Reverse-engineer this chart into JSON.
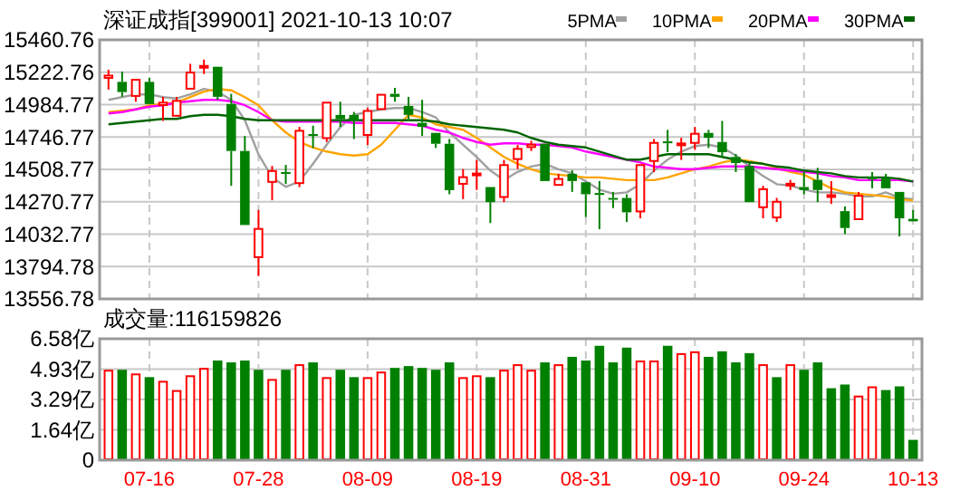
{
  "chart_data": [
    {
      "type": "candlestick",
      "title": "深证成指[399001]  2021-10-13  10:07",
      "categories": [
        null,
        null,
        null,
        null,
        null,
        null,
        null,
        null,
        null,
        null,
        null,
        null,
        null,
        null,
        null,
        null,
        null,
        null,
        null,
        null,
        null,
        null,
        null,
        null,
        null,
        null,
        null,
        null,
        null,
        null,
        null,
        null,
        null,
        null,
        null,
        null,
        null,
        null,
        null,
        null,
        null,
        null,
        null,
        null,
        null,
        null,
        null,
        null,
        null,
        null,
        null,
        null,
        null,
        null,
        null,
        null,
        null,
        null,
        null,
        null
      ],
      "ohlc": [
        [
          15174,
          15241,
          15095,
          15205
        ],
        [
          15152,
          15227,
          15042,
          15077
        ],
        [
          15042,
          15174,
          15006,
          15174
        ],
        [
          15152,
          15183,
          14980,
          14989
        ],
        [
          14975,
          15042,
          14865,
          15006
        ],
        [
          14896,
          15042,
          14887,
          15019
        ],
        [
          15095,
          15285,
          15086,
          15227
        ],
        [
          15263,
          15316,
          15210,
          15276
        ],
        [
          15263,
          15263,
          15020,
          15042
        ],
        [
          14989,
          15064,
          14388,
          14644
        ],
        [
          14644,
          14754,
          14100,
          14100
        ],
        [
          13857,
          14211,
          13725,
          14078
        ],
        [
          14410,
          14534,
          14282,
          14503
        ],
        [
          14489,
          14542,
          14401,
          14476
        ],
        [
          14401,
          14821,
          14379,
          14799
        ],
        [
          14768,
          14830,
          14666,
          14755
        ],
        [
          14732,
          15006,
          14710,
          15006
        ],
        [
          14909,
          15006,
          14821,
          14878
        ],
        [
          14909,
          14931,
          14732,
          14865
        ],
        [
          14755,
          14962,
          14688,
          14945
        ],
        [
          14945,
          15077,
          14931,
          15064
        ],
        [
          15064,
          15108,
          15006,
          15042
        ],
        [
          14975,
          15042,
          14865,
          14909
        ],
        [
          14851,
          15020,
          14754,
          14821
        ],
        [
          14777,
          14777,
          14666,
          14697
        ],
        [
          14697,
          14732,
          14326,
          14356
        ],
        [
          14396,
          14511,
          14290,
          14458
        ],
        [
          14467,
          14578,
          14357,
          14485
        ],
        [
          14379,
          14379,
          14114,
          14268
        ],
        [
          14299,
          14578,
          14268,
          14547
        ],
        [
          14578,
          14688,
          14511,
          14666
        ],
        [
          14666,
          14719,
          14644,
          14697
        ],
        [
          14697,
          14710,
          14414,
          14423
        ],
        [
          14388,
          14476,
          14379,
          14445
        ],
        [
          14476,
          14502,
          14343,
          14423
        ],
        [
          14414,
          14423,
          14158,
          14326
        ],
        [
          14335,
          14423,
          14069,
          14321
        ],
        [
          14299,
          14343,
          14224,
          14286
        ],
        [
          14299,
          14326,
          14122,
          14193
        ],
        [
          14193,
          14556,
          14149,
          14547
        ],
        [
          14564,
          14732,
          14489,
          14710
        ],
        [
          14715,
          14799,
          14635,
          14701
        ],
        [
          14688,
          14741,
          14578,
          14706
        ],
        [
          14697,
          14821,
          14652,
          14777
        ],
        [
          14777,
          14799,
          14666,
          14741
        ],
        [
          14710,
          14865,
          14600,
          14635
        ],
        [
          14600,
          14622,
          14489,
          14555
        ],
        [
          14534,
          14556,
          14268,
          14268
        ],
        [
          14224,
          14388,
          14149,
          14370
        ],
        [
          14149,
          14299,
          14122,
          14277
        ],
        [
          14392,
          14432,
          14357,
          14410
        ],
        [
          14379,
          14489,
          14326,
          14357
        ],
        [
          14432,
          14520,
          14268,
          14357
        ],
        [
          14313,
          14423,
          14255,
          14326
        ],
        [
          14202,
          14237,
          14034,
          14078
        ],
        [
          14136,
          14343,
          14136,
          14321
        ],
        [
          14454,
          14489,
          14370,
          14436
        ],
        [
          14445,
          14476,
          14357,
          14370
        ],
        [
          14343,
          14357,
          14016,
          14149
        ],
        [
          14145,
          14211,
          14122,
          14127
        ]
      ],
      "series": [
        {
          "name": "5PMA",
          "type": "line",
          "color": "#a0a0a0",
          "values": [
            15020,
            15040,
            15060,
            15060,
            15040,
            15030,
            15060,
            15100,
            15080,
            15020,
            14870,
            14620,
            14450,
            14380,
            14420,
            14550,
            14690,
            14820,
            14910,
            14930,
            14950,
            14960,
            14960,
            14930,
            14890,
            14780,
            14690,
            14600,
            14500,
            14430,
            14490,
            14530,
            14550,
            14510,
            14480,
            14420,
            14360,
            14330,
            14340,
            14400,
            14500,
            14580,
            14640,
            14680,
            14690,
            14670,
            14610,
            14530,
            14460,
            14400,
            14390,
            14360,
            14340,
            14340,
            14330,
            14310,
            14310,
            14340,
            14300,
            14290
          ]
        },
        {
          "name": "10PMA",
          "type": "line",
          "color": "#ffa500",
          "values": [
            14930,
            14940,
            14950,
            14980,
            14990,
            15000,
            15040,
            15080,
            15100,
            15090,
            15040,
            14980,
            14870,
            14780,
            14710,
            14670,
            14640,
            14620,
            14610,
            14620,
            14690,
            14800,
            14910,
            14890,
            14840,
            14820,
            14800,
            14740,
            14670,
            14600,
            14550,
            14510,
            14480,
            14470,
            14460,
            14450,
            14450,
            14440,
            14430,
            14430,
            14430,
            14450,
            14480,
            14510,
            14530,
            14560,
            14580,
            14570,
            14550,
            14520,
            14490,
            14470,
            14420,
            14370,
            14340,
            14330,
            14320,
            14310,
            14290,
            14280
          ]
        },
        {
          "name": "20PMA",
          "type": "line",
          "color": "#ff00ff",
          "values": [
            14920,
            14930,
            14950,
            14970,
            14980,
            15000,
            15010,
            15020,
            15020,
            15010,
            14980,
            14930,
            14870,
            14860,
            14860,
            14860,
            14860,
            14860,
            14850,
            14850,
            14850,
            14850,
            14840,
            14830,
            14800,
            14780,
            14740,
            14710,
            14690,
            14700,
            14700,
            14690,
            14690,
            14680,
            14670,
            14640,
            14620,
            14600,
            14580,
            14560,
            14530,
            14520,
            14510,
            14510,
            14520,
            14530,
            14530,
            14530,
            14520,
            14510,
            14500,
            14490,
            14480,
            14460,
            14450,
            14430,
            14430,
            14430,
            14430,
            14420
          ]
        },
        {
          "name": "30PMA",
          "type": "line",
          "color": "#006400",
          "values": [
            14840,
            14850,
            14860,
            14870,
            14880,
            14880,
            14900,
            14910,
            14910,
            14900,
            14880,
            14870,
            14870,
            14870,
            14870,
            14870,
            14870,
            14870,
            14870,
            14870,
            14870,
            14870,
            14870,
            14870,
            14860,
            14840,
            14830,
            14820,
            14810,
            14800,
            14780,
            14740,
            14710,
            14690,
            14680,
            14670,
            14640,
            14610,
            14580,
            14580,
            14600,
            14620,
            14620,
            14620,
            14620,
            14600,
            14580,
            14560,
            14550,
            14530,
            14520,
            14500,
            14490,
            14480,
            14460,
            14450,
            14450,
            14450,
            14440,
            14420
          ]
        }
      ],
      "ylim": [
        13556.78,
        15460.76
      ],
      "yticks": [
        13556.78,
        13794.78,
        14032.77,
        14270.77,
        14508.77,
        14746.77,
        14984.77,
        15222.76,
        15460.76
      ],
      "grid": true,
      "legend": "top right",
      "tick_labels": "y"
    },
    {
      "type": "bar",
      "title": "成交量:116159826",
      "categories": [
        null,
        null,
        null,
        "07-16",
        null,
        null,
        null,
        null,
        null,
        null,
        null,
        "07-28",
        null,
        null,
        null,
        null,
        null,
        null,
        null,
        "08-09",
        null,
        null,
        null,
        null,
        null,
        null,
        null,
        "08-19",
        null,
        null,
        null,
        null,
        null,
        null,
        null,
        "08-31",
        null,
        null,
        null,
        null,
        null,
        null,
        null,
        "09-10",
        null,
        null,
        null,
        null,
        null,
        null,
        null,
        "09-24",
        null,
        null,
        null,
        null,
        null,
        null,
        null,
        "10-13"
      ],
      "values": [
        4.9,
        4.9,
        4.7,
        4.5,
        4.3,
        3.8,
        4.6,
        5.0,
        5.4,
        5.3,
        5.4,
        4.9,
        4.4,
        4.9,
        5.2,
        5.3,
        4.5,
        4.9,
        4.5,
        4.5,
        4.8,
        5.0,
        5.1,
        5.0,
        4.9,
        5.3,
        4.5,
        4.6,
        4.5,
        4.9,
        5.2,
        4.9,
        5.3,
        5.2,
        5.6,
        5.4,
        6.2,
        5.3,
        6.1,
        5.4,
        5.4,
        6.2,
        5.8,
        5.9,
        5.6,
        5.9,
        5.3,
        5.8,
        5.2,
        4.5,
        5.2,
        4.9,
        5.3,
        3.9,
        4.1,
        3.5,
        4.0,
        3.8,
        4.0,
        1.1
      ],
      "colors": [
        "#ff0000",
        "#008000",
        "#ff0000",
        "#008000",
        "#ff0000",
        "#ff0000",
        "#ff0000",
        "#ff0000",
        "#008000",
        "#008000",
        "#008000",
        "#008000",
        "#ff0000",
        "#008000",
        "#ff0000",
        "#008000",
        "#ff0000",
        "#008000",
        "#008000",
        "#ff0000",
        "#ff0000",
        "#008000",
        "#008000",
        "#008000",
        "#008000",
        "#008000",
        "#ff0000",
        "#ff0000",
        "#008000",
        "#ff0000",
        "#ff0000",
        "#ff0000",
        "#008000",
        "#ff0000",
        "#008000",
        "#008000",
        "#008000",
        "#008000",
        "#008000",
        "#ff0000",
        "#ff0000",
        "#008000",
        "#ff0000",
        "#ff0000",
        "#008000",
        "#008000",
        "#008000",
        "#008000",
        "#ff0000",
        "#008000",
        "#ff0000",
        "#008000",
        "#008000",
        "#008000",
        "#008000",
        "#ff0000",
        "#ff0000",
        "#008000",
        "#008000",
        "#008000"
      ],
      "ylim": [
        0,
        6.58
      ],
      "yticks": [
        0,
        {
          "value": 1.64,
          "label": "1.64亿"
        },
        {
          "value": 3.29,
          "label": "3.29亿"
        },
        {
          "value": 4.93,
          "label": "4.93亿"
        },
        {
          "value": 6.58,
          "label": "6.58亿"
        }
      ],
      "grid": true
    }
  ]
}
